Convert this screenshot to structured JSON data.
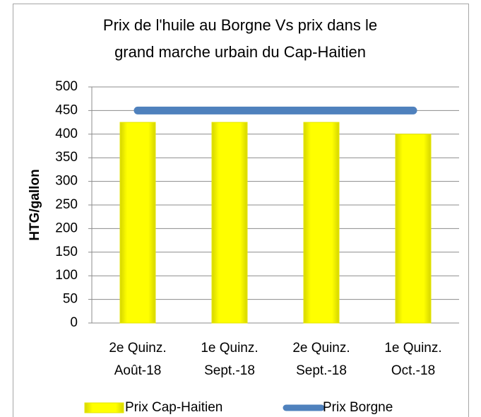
{
  "chart_data": {
    "type": "bar",
    "title": [
      "Prix de l'huile au Borgne Vs prix dans le",
      "grand marche urbain du Cap-Haitien"
    ],
    "y_label": "HTG/gallon",
    "categories": [
      [
        "2e Quinz.",
        "Août-18"
      ],
      [
        "1e Quinz.",
        "Sept.-18"
      ],
      [
        "2e Quinz.",
        "Sept.-18"
      ],
      [
        "1e Quinz.",
        "Oct.-18"
      ]
    ],
    "series": [
      {
        "name": "Prix Cap-Haitien",
        "type": "bar",
        "color": "#ffff00",
        "values": [
          425,
          425,
          425,
          400
        ]
      },
      {
        "name": "Prix Borgne",
        "type": "line",
        "color": "#4f81bd",
        "values": [
          450,
          450,
          450,
          450
        ]
      }
    ],
    "ylim": [
      0,
      500
    ],
    "yticks": [
      0,
      50,
      100,
      150,
      200,
      250,
      300,
      350,
      400,
      450,
      500
    ],
    "grid": true,
    "legend": "bottom"
  }
}
